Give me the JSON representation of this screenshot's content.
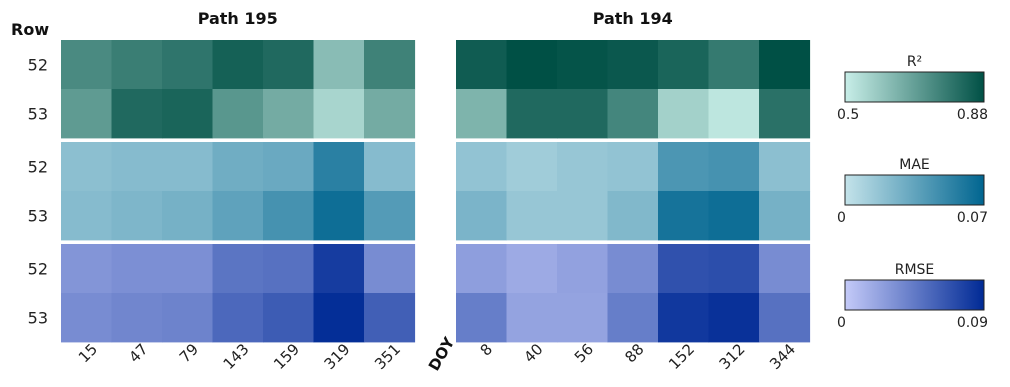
{
  "chart_data": {
    "type": "heatmap",
    "row_axis_label": "Row",
    "x_axis_label": "DOY",
    "row_labels": [
      "52",
      "53",
      "52",
      "53",
      "52",
      "53"
    ],
    "metrics": [
      {
        "name": "R²",
        "range": [
          0.5,
          0.88
        ],
        "tick_labels": [
          "0.5",
          "0.88"
        ],
        "colors": [
          "#c8eee8",
          "#005045"
        ]
      },
      {
        "name": "MAE",
        "range": [
          0,
          0.07
        ],
        "tick_labels": [
          "0",
          "0.07"
        ],
        "colors": [
          "#c4e3ea",
          "#006590"
        ]
      },
      {
        "name": "RMSE",
        "range": [
          0,
          0.09
        ],
        "tick_labels": [
          "0",
          "0.09"
        ],
        "colors": [
          "#c4caf8",
          "#002a95"
        ]
      }
    ],
    "panels": [
      {
        "title": "Path 195",
        "doy": [
          "15",
          "47",
          "79",
          "143",
          "159",
          "319",
          "351"
        ],
        "R²": {
          "52": [
            0.74,
            0.77,
            0.79,
            0.84,
            0.82,
            0.62,
            0.76
          ],
          "53": [
            0.7,
            0.82,
            0.83,
            0.71,
            0.66,
            0.56,
            0.66
          ]
        },
        "MAE": {
          "52": [
            0.02,
            0.022,
            0.022,
            0.03,
            0.032,
            0.055,
            0.022
          ],
          "53": [
            0.022,
            0.025,
            0.028,
            0.036,
            0.045,
            0.065,
            0.04
          ]
        },
        "RMSE": {
          "52": [
            0.03,
            0.033,
            0.033,
            0.048,
            0.05,
            0.08,
            0.035
          ],
          "53": [
            0.035,
            0.038,
            0.04,
            0.055,
            0.062,
            0.088,
            0.06
          ]
        }
      },
      {
        "title": "Path 194",
        "doy": [
          "8",
          "40",
          "56",
          "88",
          "152",
          "312",
          "344"
        ],
        "R²": {
          "52": [
            0.85,
            0.88,
            0.87,
            0.86,
            0.83,
            0.78,
            0.88
          ],
          "53": [
            0.64,
            0.82,
            0.82,
            0.75,
            0.57,
            0.52,
            0.8
          ]
        },
        "MAE": {
          "52": [
            0.018,
            0.013,
            0.016,
            0.018,
            0.043,
            0.045,
            0.02
          ],
          "53": [
            0.026,
            0.016,
            0.016,
            0.024,
            0.062,
            0.065,
            0.028
          ]
        },
        "RMSE": {
          "52": [
            0.025,
            0.018,
            0.023,
            0.035,
            0.068,
            0.07,
            0.035
          ],
          "53": [
            0.043,
            0.022,
            0.022,
            0.043,
            0.082,
            0.086,
            0.05
          ]
        }
      }
    ]
  }
}
